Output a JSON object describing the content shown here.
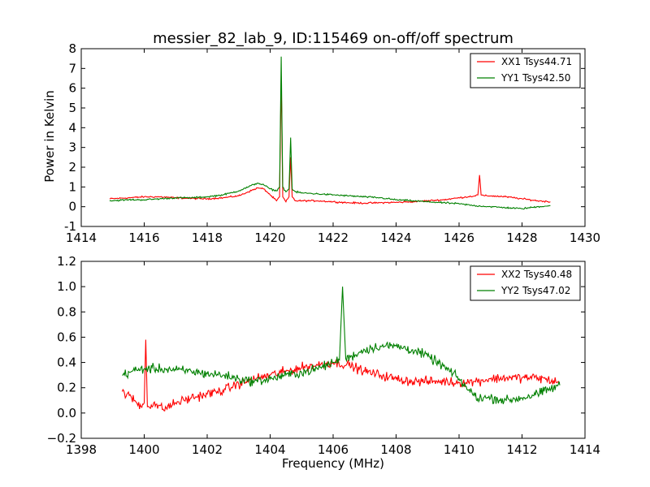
{
  "chart_data": [
    {
      "type": "line",
      "title": "messier_82_lab_9, ID:115469 on-off/off spectrum",
      "xlabel": "",
      "ylabel": "Power in Kelvin",
      "xlim": [
        1414,
        1430
      ],
      "ylim": [
        -1,
        8
      ],
      "xticks": [
        1414,
        1416,
        1418,
        1420,
        1422,
        1424,
        1426,
        1428,
        1430
      ],
      "yticks": [
        -1,
        0,
        1,
        2,
        3,
        4,
        5,
        6,
        7,
        8
      ],
      "grid": false,
      "legend_position": "top-right",
      "series": [
        {
          "name": "XX1 Tsys44.71",
          "color": "#ff0000",
          "x": [
            1414.9,
            1415.5,
            1416.0,
            1416.5,
            1417.0,
            1417.5,
            1418.0,
            1418.5,
            1419.0,
            1419.3,
            1419.6,
            1419.8,
            1420.0,
            1420.2,
            1420.3,
            1420.35,
            1420.4,
            1420.5,
            1420.6,
            1420.65,
            1420.7,
            1420.8,
            1421.0,
            1421.5,
            1422.0,
            1422.5,
            1423.0,
            1423.5,
            1424.0,
            1424.5,
            1425.0,
            1425.5,
            1426.0,
            1426.5,
            1426.6,
            1426.65,
            1426.7,
            1426.8,
            1427.0,
            1427.5,
            1428.0,
            1428.5,
            1428.9
          ],
          "y": [
            0.4,
            0.45,
            0.5,
            0.5,
            0.45,
            0.42,
            0.4,
            0.45,
            0.55,
            0.75,
            0.95,
            0.9,
            0.6,
            0.3,
            0.5,
            6.6,
            0.5,
            0.25,
            0.5,
            2.5,
            0.5,
            0.3,
            0.3,
            0.3,
            0.25,
            0.2,
            0.18,
            0.2,
            0.22,
            0.25,
            0.3,
            0.35,
            0.45,
            0.55,
            0.6,
            1.6,
            0.6,
            0.55,
            0.55,
            0.5,
            0.4,
            0.3,
            0.25
          ]
        },
        {
          "name": "YY1 Tsys42.50",
          "color": "#008000",
          "x": [
            1414.9,
            1415.5,
            1416.0,
            1416.5,
            1417.0,
            1417.5,
            1418.0,
            1418.5,
            1419.0,
            1419.3,
            1419.6,
            1419.8,
            1420.0,
            1420.2,
            1420.3,
            1420.35,
            1420.4,
            1420.5,
            1420.6,
            1420.65,
            1420.7,
            1420.8,
            1421.0,
            1421.5,
            1422.0,
            1422.5,
            1423.0,
            1423.5,
            1424.0,
            1424.5,
            1425.0,
            1425.5,
            1426.0,
            1426.5,
            1427.0,
            1427.5,
            1428.0,
            1428.5,
            1428.9
          ],
          "y": [
            0.3,
            0.35,
            0.35,
            0.4,
            0.45,
            0.45,
            0.5,
            0.6,
            0.8,
            1.0,
            1.2,
            1.1,
            0.9,
            0.8,
            1.0,
            7.6,
            1.0,
            0.75,
            0.9,
            3.5,
            0.9,
            0.75,
            0.7,
            0.65,
            0.6,
            0.55,
            0.5,
            0.45,
            0.35,
            0.3,
            0.25,
            0.2,
            0.15,
            0.05,
            0.0,
            -0.05,
            -0.1,
            0.0,
            0.05
          ]
        }
      ]
    },
    {
      "type": "line",
      "title": "",
      "xlabel": "Frequency (MHz)",
      "ylabel": "",
      "xlim": [
        1398,
        1414
      ],
      "ylim": [
        -0.2,
        1.2
      ],
      "xticks": [
        1398,
        1400,
        1402,
        1404,
        1406,
        1408,
        1410,
        1412,
        1414
      ],
      "yticks": [
        -0.2,
        0.0,
        0.2,
        0.4,
        0.6,
        0.8,
        1.0,
        1.2
      ],
      "ytick_labels": [
        "−0.2",
        "0.0",
        "0.2",
        "0.4",
        "0.6",
        "0.8",
        "1.0",
        "1.2"
      ],
      "grid": false,
      "legend_position": "top-right",
      "series": [
        {
          "name": "XX2 Tsys40.48",
          "color": "#ff0000",
          "x": [
            1399.3,
            1399.6,
            1399.9,
            1400.0,
            1400.05,
            1400.1,
            1400.3,
            1400.6,
            1401.0,
            1401.5,
            1402.0,
            1402.5,
            1403.0,
            1403.5,
            1404.0,
            1404.5,
            1405.0,
            1405.5,
            1406.0,
            1406.5,
            1407.0,
            1407.5,
            1408.0,
            1408.5,
            1409.0,
            1409.5,
            1410.0,
            1410.5,
            1411.0,
            1411.5,
            1412.0,
            1412.5,
            1413.2
          ],
          "y": [
            0.17,
            0.12,
            0.05,
            0.08,
            0.58,
            0.05,
            0.08,
            0.03,
            0.08,
            0.12,
            0.15,
            0.18,
            0.23,
            0.27,
            0.3,
            0.33,
            0.36,
            0.38,
            0.4,
            0.38,
            0.33,
            0.3,
            0.27,
            0.25,
            0.25,
            0.25,
            0.24,
            0.25,
            0.27,
            0.28,
            0.28,
            0.28,
            0.24
          ]
        },
        {
          "name": "YY2 Tsys47.02",
          "color": "#008000",
          "x": [
            1399.3,
            1399.6,
            1400.0,
            1400.5,
            1401.0,
            1401.5,
            1402.0,
            1402.5,
            1403.0,
            1403.5,
            1404.0,
            1404.5,
            1405.0,
            1405.5,
            1406.0,
            1406.2,
            1406.3,
            1406.4,
            1406.6,
            1407.0,
            1407.5,
            1408.0,
            1408.5,
            1409.0,
            1409.5,
            1410.0,
            1410.3,
            1410.6,
            1411.0,
            1411.5,
            1412.0,
            1412.5,
            1413.2
          ],
          "y": [
            0.3,
            0.33,
            0.35,
            0.35,
            0.34,
            0.33,
            0.31,
            0.3,
            0.27,
            0.25,
            0.27,
            0.3,
            0.32,
            0.35,
            0.4,
            0.42,
            1.0,
            0.43,
            0.45,
            0.5,
            0.53,
            0.53,
            0.5,
            0.45,
            0.37,
            0.27,
            0.18,
            0.12,
            0.12,
            0.1,
            0.12,
            0.15,
            0.22
          ]
        }
      ]
    }
  ]
}
